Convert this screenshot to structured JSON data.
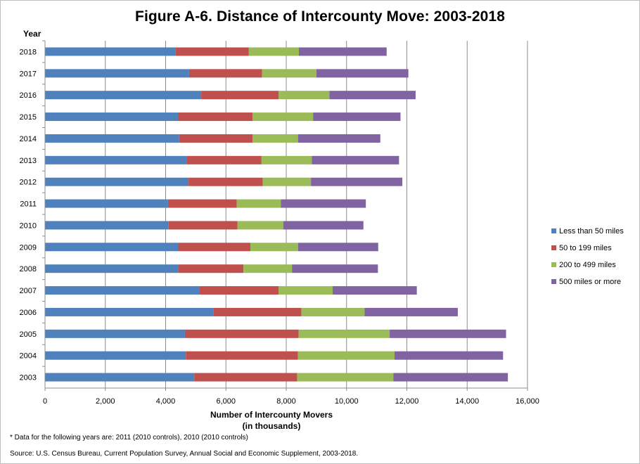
{
  "chart_data": {
    "type": "bar",
    "orientation": "horizontal",
    "stacked": true,
    "title": "Figure A-6. Distance  of Intercounty Move: 2003-2018",
    "ylabel": "Year",
    "xlabel_line1": "Number of Intercounty Movers",
    "xlabel_line2": "(in thousands)",
    "xlim": [
      0,
      16000
    ],
    "xticks": [
      0,
      2000,
      4000,
      6000,
      8000,
      10000,
      12000,
      14000,
      16000
    ],
    "xtick_labels": [
      "0",
      "2,000",
      "4,000",
      "6,000",
      "8,000",
      "10,000",
      "12,000",
      "14,000",
      "16,000"
    ],
    "grid": "vertical",
    "legend_position": "right",
    "categories": [
      "2018",
      "2017",
      "2016",
      "2015",
      "2014",
      "2013",
      "2012",
      "2011",
      "2010",
      "2009",
      "2008",
      "2007",
      "2006",
      "2005",
      "2004",
      "2003"
    ],
    "series": [
      {
        "name": "Less than 50 miles",
        "color": "#4f81bd",
        "values": [
          4320,
          4780,
          5180,
          4420,
          4450,
          4710,
          4760,
          4080,
          4100,
          4420,
          4430,
          5130,
          5580,
          4640,
          4670,
          4950
        ]
      },
      {
        "name": "50 to 199 miles",
        "color": "#c0504d",
        "values": [
          2440,
          2420,
          2570,
          2460,
          2430,
          2470,
          2460,
          2280,
          2280,
          2390,
          2150,
          2620,
          2920,
          3770,
          3720,
          3410
        ]
      },
      {
        "name": "200 to 499 miles",
        "color": "#9bbb59",
        "values": [
          1660,
          1800,
          1680,
          2010,
          1510,
          1670,
          1600,
          1460,
          1520,
          1580,
          1610,
          1790,
          2100,
          3020,
          3200,
          3190
        ]
      },
      {
        "name": "500 miles or more",
        "color": "#8064a2",
        "values": [
          2910,
          3050,
          2860,
          2900,
          2730,
          2890,
          3030,
          2820,
          2660,
          2660,
          2850,
          2790,
          3090,
          3860,
          3600,
          3800
        ]
      }
    ]
  },
  "footnote": "* Data for the following years are: 2011 (2010 controls), 2010 (2010 controls)",
  "source": "Source: U.S. Census Bureau, Current Population Survey, Annual Social and Economic Supplement, 2003-2018."
}
